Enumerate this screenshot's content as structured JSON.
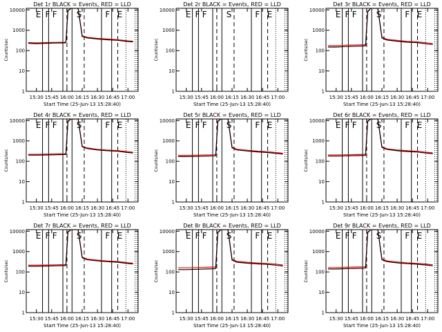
{
  "figure": {
    "xlabel": "Start Time (25-Jun-13 15:28:40)",
    "ylabel": "Counts/sec"
  },
  "chart_data": {
    "type": "line",
    "x_ticks": [
      "15:30",
      "15:45",
      "16:00",
      "16:15",
      "16:30",
      "16:45",
      "17:00"
    ],
    "x_tick_minutes": [
      0,
      15,
      30,
      45,
      60,
      75,
      90
    ],
    "y_scale": "log",
    "ylim": [
      1,
      12000
    ],
    "y_ticks": [
      "1",
      "10",
      "100",
      "1000",
      "10000"
    ],
    "colors": {
      "events": "#000000",
      "lld": "#ff0000"
    },
    "panels": [
      {
        "title": "Det 1r BLACK = Events, RED = LLD",
        "flags": [
          "E",
          "F",
          "F",
          "S",
          "F",
          "E"
        ],
        "events": {
          "x": [
            -8,
            0,
            10,
            20,
            28,
            29,
            31,
            34,
            38,
            41,
            45,
            50,
            60,
            70,
            80,
            90,
            95
          ],
          "y": [
            230,
            220,
            230,
            235,
            240,
            250,
            9000,
            12000,
            12000,
            12000,
            500,
            420,
            370,
            340,
            320,
            280,
            270
          ]
        },
        "lld": {
          "x": [
            -8,
            0,
            10,
            20,
            28,
            29,
            31,
            34,
            38,
            41,
            45,
            50,
            60,
            70,
            80,
            90,
            95
          ],
          "y": [
            250,
            240,
            250,
            255,
            260,
            270,
            9500,
            12000,
            12000,
            12000,
            540,
            450,
            400,
            370,
            345,
            300,
            290
          ]
        }
      },
      {
        "title": "Det 2r BLACK = Events, RED = LLD",
        "flags": [
          "E",
          "F",
          "F",
          "S",
          "F",
          "E"
        ],
        "events": {
          "x": [],
          "y": []
        },
        "lld": {
          "x": [],
          "y": []
        }
      },
      {
        "title": "Det 3r BLACK = Events, RED = LLD",
        "flags": [
          "E",
          "F",
          "F",
          "S",
          "F",
          "E"
        ],
        "events": {
          "x": [
            -8,
            0,
            10,
            20,
            28,
            29,
            31,
            34,
            38,
            41,
            45,
            50,
            60,
            70,
            80,
            90,
            95
          ],
          "y": [
            150,
            150,
            160,
            165,
            170,
            175,
            8000,
            12000,
            12000,
            12000,
            420,
            330,
            290,
            260,
            245,
            210,
            200
          ]
        },
        "lld": {
          "x": [
            -8,
            0,
            10,
            20,
            28,
            29,
            31,
            34,
            38,
            41,
            45,
            50,
            60,
            70,
            80,
            90,
            95
          ],
          "y": [
            175,
            175,
            185,
            190,
            195,
            200,
            8500,
            12000,
            12000,
            12000,
            460,
            360,
            320,
            285,
            270,
            235,
            225
          ]
        }
      },
      {
        "title": "Det 4r BLACK = Events, RED = LLD",
        "flags": [
          "E",
          "F",
          "F",
          "S",
          "F",
          "E"
        ],
        "events": {
          "x": [
            -8,
            0,
            10,
            20,
            28,
            29,
            31,
            34,
            38,
            41,
            45,
            50,
            60,
            70,
            80,
            90,
            95
          ],
          "y": [
            200,
            200,
            205,
            210,
            215,
            220,
            9000,
            12000,
            12000,
            12000,
            520,
            420,
            360,
            330,
            310,
            270,
            255
          ]
        },
        "lld": {
          "x": [
            -8,
            0,
            10,
            20,
            28,
            29,
            31,
            34,
            38,
            41,
            45,
            50,
            60,
            70,
            80,
            90,
            95
          ],
          "y": [
            220,
            220,
            225,
            230,
            235,
            240,
            9500,
            12000,
            12000,
            12000,
            560,
            450,
            390,
            355,
            335,
            295,
            280
          ]
        }
      },
      {
        "title": "Det 5r BLACK = Events, RED = LLD",
        "flags": [
          "E",
          "F",
          "F",
          "S",
          "F",
          "E"
        ],
        "events": {
          "x": [
            -8,
            0,
            10,
            20,
            28,
            29,
            31,
            34,
            38,
            41,
            45,
            50,
            60,
            70,
            80,
            90,
            95
          ],
          "y": [
            170,
            170,
            175,
            180,
            185,
            190,
            9000,
            12000,
            12000,
            12000,
            460,
            360,
            320,
            290,
            270,
            240,
            225
          ]
        },
        "lld": {
          "x": [
            -8,
            0,
            10,
            20,
            28,
            29,
            31,
            34,
            38,
            41,
            45,
            50,
            60,
            70,
            80,
            90,
            95
          ],
          "y": [
            195,
            195,
            200,
            205,
            210,
            215,
            9500,
            12000,
            12000,
            12000,
            500,
            390,
            350,
            315,
            295,
            265,
            250
          ]
        }
      },
      {
        "title": "Det 6r BLACK = Events, RED = LLD",
        "flags": [
          "E",
          "F",
          "F",
          "S",
          "F",
          "E"
        ],
        "events": {
          "x": [
            -8,
            0,
            10,
            20,
            28,
            29,
            31,
            34,
            38,
            41,
            45,
            50,
            60,
            70,
            80,
            90,
            95
          ],
          "y": [
            180,
            180,
            185,
            190,
            195,
            200,
            9000,
            12000,
            12000,
            12000,
            480,
            380,
            330,
            300,
            285,
            250,
            235
          ]
        },
        "lld": {
          "x": [
            -8,
            0,
            10,
            20,
            28,
            29,
            31,
            34,
            38,
            41,
            45,
            50,
            60,
            70,
            80,
            90,
            95
          ],
          "y": [
            205,
            205,
            210,
            215,
            220,
            225,
            9500,
            12000,
            12000,
            12000,
            520,
            410,
            360,
            330,
            310,
            275,
            260
          ]
        }
      },
      {
        "title": "Det 7r BLACK = Events, RED = LLD",
        "flags": [
          "E",
          "F",
          "F",
          "S",
          "F",
          "E"
        ],
        "events": {
          "x": [
            -8,
            0,
            10,
            20,
            28,
            29,
            31,
            34,
            38,
            41,
            45,
            50,
            60,
            70,
            80,
            90,
            95
          ],
          "y": [
            190,
            190,
            195,
            200,
            205,
            210,
            9000,
            12000,
            12000,
            12000,
            500,
            400,
            350,
            320,
            300,
            260,
            245
          ]
        },
        "lld": {
          "x": [
            -8,
            0,
            10,
            20,
            28,
            29,
            31,
            34,
            38,
            41,
            45,
            50,
            60,
            70,
            80,
            90,
            95
          ],
          "y": [
            215,
            215,
            220,
            225,
            230,
            235,
            9500,
            12000,
            12000,
            12000,
            540,
            430,
            380,
            345,
            325,
            285,
            270
          ]
        }
      },
      {
        "title": "Det 8r BLACK = Events, RED = LLD",
        "flags": [
          "E",
          "F",
          "F",
          "S",
          "F",
          "E"
        ],
        "events": {
          "x": [
            -8,
            0,
            10,
            20,
            28,
            29,
            31,
            34,
            38,
            41,
            45,
            50,
            60,
            70,
            80,
            90,
            95
          ],
          "y": [
            130,
            130,
            135,
            140,
            145,
            150,
            8500,
            12000,
            12000,
            12000,
            380,
            300,
            270,
            250,
            235,
            210,
            195
          ]
        },
        "lld": {
          "x": [
            -8,
            0,
            10,
            20,
            28,
            29,
            31,
            34,
            38,
            41,
            45,
            50,
            60,
            70,
            80,
            90,
            95
          ],
          "y": [
            160,
            160,
            165,
            170,
            175,
            180,
            9000,
            12000,
            12000,
            12000,
            420,
            330,
            300,
            275,
            260,
            235,
            220
          ]
        }
      },
      {
        "title": "Det 9r BLACK = Events, RED = LLD",
        "flags": [
          "E",
          "F",
          "F",
          "S",
          "F",
          "E"
        ],
        "events": {
          "x": [
            -8,
            0,
            10,
            20,
            28,
            29,
            31,
            34,
            38,
            41,
            45,
            50,
            60,
            70,
            80,
            90,
            95
          ],
          "y": [
            140,
            140,
            145,
            150,
            155,
            160,
            8500,
            12000,
            12000,
            12000,
            400,
            320,
            280,
            255,
            240,
            215,
            200
          ]
        },
        "lld": {
          "x": [
            -8,
            0,
            10,
            20,
            28,
            29,
            31,
            34,
            38,
            41,
            45,
            50,
            60,
            70,
            80,
            90,
            95
          ],
          "y": [
            165,
            165,
            170,
            175,
            180,
            185,
            9000,
            12000,
            12000,
            12000,
            440,
            350,
            310,
            280,
            265,
            240,
            225
          ]
        }
      }
    ]
  }
}
